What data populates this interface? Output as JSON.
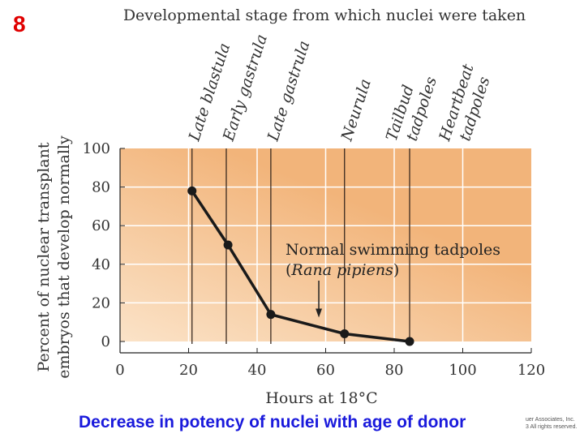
{
  "slide_number": "8",
  "caption": "Decrease in potency of nuclei with age of donor",
  "copyright": [
    "uer Associates, Inc.",
    "3 All rights reserved."
  ],
  "chart_data": {
    "type": "line",
    "top_axis_title": "Developmental stage from which nuclei were taken",
    "xlabel": "Hours at 18°C",
    "ylabel": [
      "Percent of nuclear transplant",
      "embryos that develop normally"
    ],
    "xlim": [
      0,
      120
    ],
    "ylim": [
      0,
      100
    ],
    "x_ticks": [
      0,
      20,
      40,
      60,
      80,
      100,
      120
    ],
    "y_ticks": [
      0,
      20,
      40,
      60,
      80,
      100
    ],
    "grid": true,
    "colors": {
      "background_light": "#fbe3c8",
      "background_dark": "#f2b47a",
      "line": "#1a1a1a",
      "grid": "#ffffff"
    },
    "stages": [
      {
        "label": [
          "Late blastula"
        ],
        "x": 21,
        "line": true
      },
      {
        "label": [
          "Early gastrula"
        ],
        "x": 31,
        "line": true
      },
      {
        "label": [
          "Late gastrula"
        ],
        "x": 44,
        "line": true
      },
      {
        "label": [
          "Neurula"
        ],
        "x": 65.5,
        "line": true
      },
      {
        "label": [
          "Tailbud",
          "tadpoles"
        ],
        "x": 84.5,
        "line": true
      },
      {
        "label": [
          "Heartbeat",
          "tadpoles"
        ],
        "x": 100,
        "line": false
      }
    ],
    "series": [
      {
        "x": [
          21,
          31.5,
          44,
          65.5,
          84.5
        ],
        "y": [
          78,
          50,
          14,
          4,
          0
        ]
      }
    ],
    "annotation": {
      "text": "Normal swimming tadpoles",
      "text2": "Rana pipiens",
      "arrow_x": 58,
      "arrow_y": 12
    }
  }
}
